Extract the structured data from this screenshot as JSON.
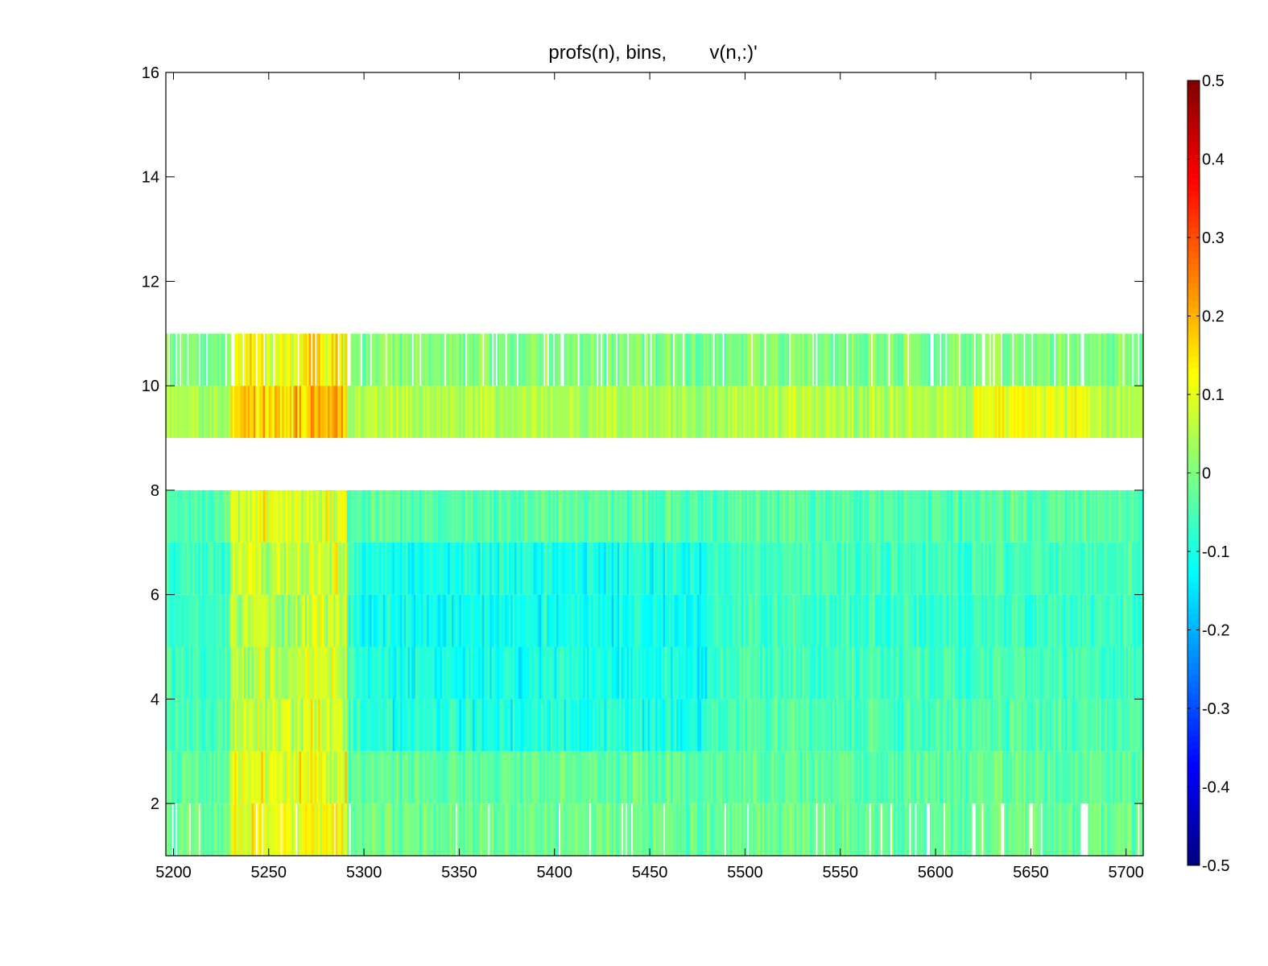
{
  "chart_data": {
    "type": "heatmap",
    "title": "profs(n), bins,        v(n,:)'",
    "xlabel": "",
    "ylabel": "",
    "xlim": [
      5196,
      5709
    ],
    "ylim": [
      1,
      16
    ],
    "x_ticks": [
      5200,
      5250,
      5300,
      5350,
      5400,
      5450,
      5500,
      5550,
      5600,
      5650,
      5700
    ],
    "y_ticks": [
      2,
      4,
      6,
      8,
      10,
      12,
      14,
      16
    ],
    "colorbar": {
      "clim": [
        -0.5,
        0.5
      ],
      "ticks": [
        0.5,
        0.4,
        0.3,
        0.2,
        0.1,
        0,
        -0.1,
        -0.2,
        -0.3,
        -0.4,
        -0.5
      ],
      "colormap": "jet",
      "placement": "right"
    },
    "x_start": 5196,
    "x_end": 5709,
    "x_step": 1,
    "rows": [
      {
        "bin": 1,
        "mean": -0.02,
        "fill": 0.92
      },
      {
        "bin": 2,
        "mean": -0.03,
        "fill": 1.0
      },
      {
        "bin": 3,
        "mean": -0.05,
        "fill": 1.0
      },
      {
        "bin": 4,
        "mean": -0.06,
        "fill": 1.0
      },
      {
        "bin": 5,
        "mean": -0.07,
        "fill": 1.0
      },
      {
        "bin": 6,
        "mean": -0.06,
        "fill": 1.0
      },
      {
        "bin": 7,
        "mean": -0.04,
        "fill": 1.0
      },
      {
        "bin": 8,
        "mean": null,
        "fill": 0
      },
      {
        "bin": 9,
        "mean": 0.05,
        "fill": 1.0
      },
      {
        "bin": 10,
        "mean": 0.0,
        "fill": 0.85
      }
    ],
    "hot_spots": [
      {
        "x_from": 5230,
        "x_to": 5290,
        "bins_from": 1,
        "bins_to": 10,
        "offset": 0.14
      },
      {
        "x_from": 5620,
        "x_to": 5680,
        "bins_from": 9,
        "bins_to": 9,
        "offset": 0.07
      },
      {
        "x_from": 5295,
        "x_to": 5480,
        "bins_from": 3,
        "bins_to": 6,
        "offset": -0.05
      }
    ],
    "grid": false
  }
}
